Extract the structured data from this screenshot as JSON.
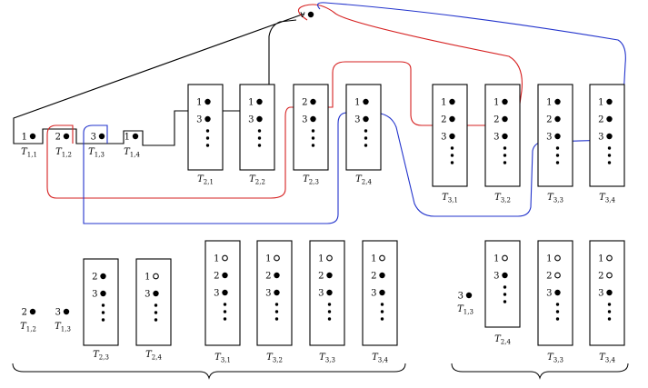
{
  "root": {
    "label": "v"
  },
  "colors": {
    "black": "#000000",
    "red": "#d62020",
    "blue": "#2233cc"
  },
  "top": {
    "level1": [
      {
        "main": "T",
        "sub": "1,1",
        "points": [
          {
            "num": "1",
            "filled": true
          }
        ]
      },
      {
        "main": "T",
        "sub": "1,2",
        "points": [
          {
            "num": "2",
            "filled": true
          }
        ]
      },
      {
        "main": "T",
        "sub": "1,3",
        "points": [
          {
            "num": "3",
            "filled": true
          }
        ]
      },
      {
        "main": "T",
        "sub": "1,4",
        "points": [
          {
            "num": "1",
            "filled": true
          }
        ]
      }
    ],
    "level2": [
      {
        "main": "T",
        "sub": "2,1",
        "points": [
          {
            "num": "1",
            "filled": true
          },
          {
            "num": "3",
            "filled": true
          }
        ]
      },
      {
        "main": "T",
        "sub": "2,2",
        "points": [
          {
            "num": "1",
            "filled": true
          },
          {
            "num": "3",
            "filled": true
          }
        ]
      },
      {
        "main": "T",
        "sub": "2,3",
        "points": [
          {
            "num": "2",
            "filled": true
          },
          {
            "num": "3",
            "filled": true
          }
        ]
      },
      {
        "main": "T",
        "sub": "2,4",
        "points": [
          {
            "num": "1",
            "filled": true
          },
          {
            "num": "3",
            "filled": true
          }
        ]
      }
    ],
    "level3": [
      {
        "main": "T",
        "sub": "3,1",
        "points": [
          {
            "num": "1",
            "filled": true
          },
          {
            "num": "2",
            "filled": true
          },
          {
            "num": "3",
            "filled": true
          }
        ]
      },
      {
        "main": "T",
        "sub": "3,2",
        "points": [
          {
            "num": "1",
            "filled": true
          },
          {
            "num": "2",
            "filled": true
          },
          {
            "num": "3",
            "filled": true
          }
        ]
      },
      {
        "main": "T",
        "sub": "3,3",
        "points": [
          {
            "num": "1",
            "filled": true
          },
          {
            "num": "2",
            "filled": true
          },
          {
            "num": "3",
            "filled": true
          }
        ]
      },
      {
        "main": "T",
        "sub": "3,4",
        "points": [
          {
            "num": "1",
            "filled": true
          },
          {
            "num": "2",
            "filled": true
          },
          {
            "num": "3",
            "filled": true
          }
        ]
      }
    ]
  },
  "bottom_left": {
    "singles": [
      {
        "main": "T",
        "sub": "1,2",
        "points": [
          {
            "num": "2",
            "filled": true
          }
        ]
      },
      {
        "main": "T",
        "sub": "1,3",
        "points": [
          {
            "num": "3",
            "filled": true
          }
        ]
      }
    ],
    "boxes": [
      {
        "main": "T",
        "sub": "2,3",
        "points": [
          {
            "num": "2",
            "filled": true
          },
          {
            "num": "3",
            "filled": true
          }
        ]
      },
      {
        "main": "T",
        "sub": "2,4",
        "points": [
          {
            "num": "1",
            "filled": false
          },
          {
            "num": "3",
            "filled": true
          }
        ]
      },
      {
        "main": "T",
        "sub": "3,1",
        "points": [
          {
            "num": "1",
            "filled": false
          },
          {
            "num": "2",
            "filled": true
          },
          {
            "num": "3",
            "filled": true
          }
        ]
      },
      {
        "main": "T",
        "sub": "3,2",
        "points": [
          {
            "num": "1",
            "filled": false
          },
          {
            "num": "2",
            "filled": true
          },
          {
            "num": "3",
            "filled": true
          }
        ]
      },
      {
        "main": "T",
        "sub": "3,3",
        "points": [
          {
            "num": "1",
            "filled": false
          },
          {
            "num": "2",
            "filled": true
          },
          {
            "num": "3",
            "filled": true
          }
        ]
      },
      {
        "main": "T",
        "sub": "3,4",
        "points": [
          {
            "num": "1",
            "filled": false
          },
          {
            "num": "2",
            "filled": true
          },
          {
            "num": "3",
            "filled": true
          }
        ]
      }
    ]
  },
  "bottom_right": {
    "singles": [
      {
        "main": "T",
        "sub": "1,3",
        "points": [
          {
            "num": "3",
            "filled": true
          }
        ]
      }
    ],
    "boxes": [
      {
        "main": "T",
        "sub": "2,4",
        "points": [
          {
            "num": "1",
            "filled": false
          },
          {
            "num": "3",
            "filled": true
          }
        ]
      },
      {
        "main": "T",
        "sub": "3,3",
        "points": [
          {
            "num": "1",
            "filled": false
          },
          {
            "num": "2",
            "filled": false
          },
          {
            "num": "3",
            "filled": true
          }
        ]
      },
      {
        "main": "T",
        "sub": "3,4",
        "points": [
          {
            "num": "1",
            "filled": false
          },
          {
            "num": "2",
            "filled": false
          },
          {
            "num": "3",
            "filled": true
          }
        ]
      }
    ]
  }
}
